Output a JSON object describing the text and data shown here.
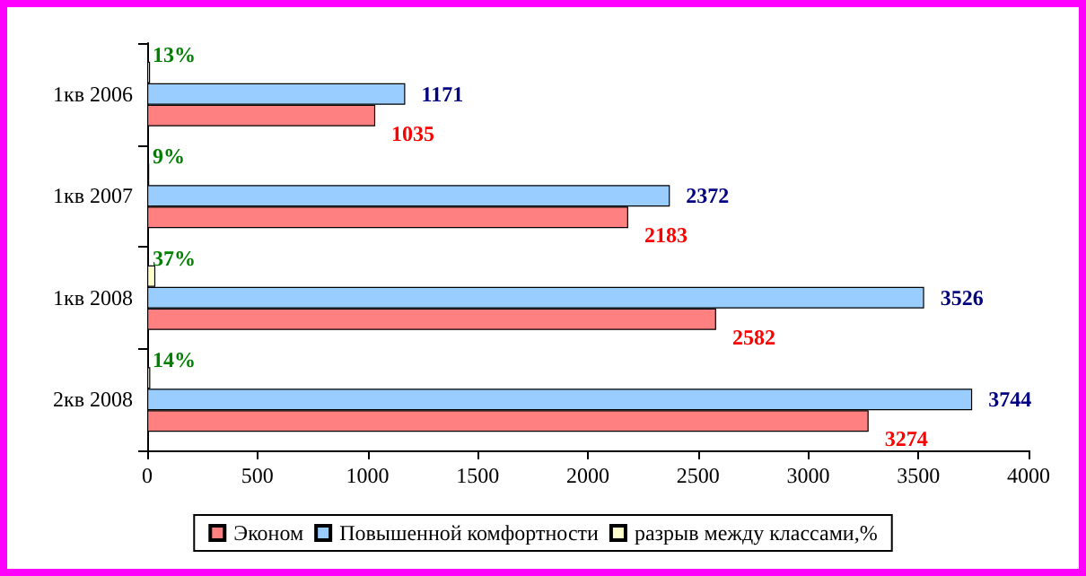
{
  "chart_data": {
    "type": "bar",
    "orientation": "horizontal",
    "categories": [
      "1кв 2006",
      "1кв 2007",
      "1кв 2008",
      "2кв 2008"
    ],
    "series": [
      {
        "name": "Эконом",
        "color": "#ff8080",
        "values": [
          1035,
          2183,
          2582,
          3274
        ],
        "value_labels": [
          "1035",
          "2183",
          "2582",
          "3274"
        ]
      },
      {
        "name": "Повышенной комфортности",
        "color": "#99ccff",
        "values": [
          1171,
          2372,
          3526,
          3744
        ],
        "value_labels": [
          "1171",
          "2372",
          "3526",
          "3744"
        ]
      },
      {
        "name": "разрыв между классами,%",
        "color": "#ffffcc",
        "values": [
          13,
          9,
          37,
          14
        ],
        "value_labels": [
          "13%",
          "9%",
          "37%",
          "14%"
        ]
      }
    ],
    "xlim": [
      0,
      4000
    ],
    "xticks": [
      0,
      500,
      1000,
      1500,
      2000,
      2500,
      3000,
      3500,
      4000
    ],
    "grid": false,
    "legend": "bottom"
  }
}
